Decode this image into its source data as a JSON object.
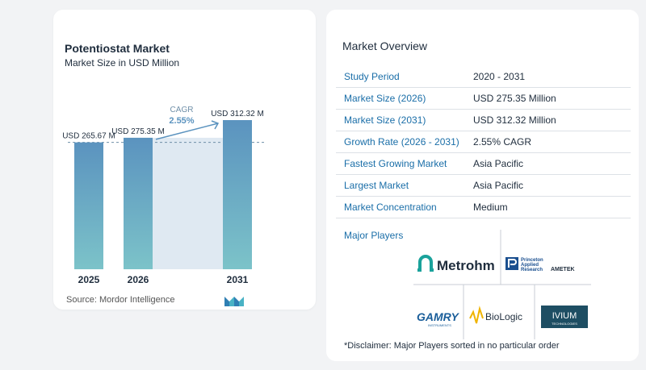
{
  "chart": {
    "title": "Potentiostat Market",
    "subtitle": "Market Size in USD Million",
    "source": "Source:  Mordor Intelligence",
    "cagr_label": "CAGR",
    "cagr_value": "2.55%"
  },
  "chart_data": {
    "type": "bar",
    "categories": [
      "2025",
      "2026",
      "2031"
    ],
    "values": [
      265.67,
      275.35,
      312.32
    ],
    "data_labels": [
      "USD 265.67 M",
      "USD 275.35 M",
      "USD 312.32 M"
    ],
    "title": "Potentiostat Market",
    "subtitle": "Market Size in USD Million",
    "xlabel": "",
    "ylabel": "",
    "colors": {
      "bar_top": "#5b93bf",
      "bar_bottom": "#7cc3c9",
      "highlight": "#dfe9f2",
      "arrow": "#5b93bf"
    }
  },
  "overview": {
    "title": "Market Overview",
    "rows": [
      {
        "label": "Study Period",
        "value": "2020 - 2031"
      },
      {
        "label": "Market Size (2026)",
        "value": "USD 275.35 Million"
      },
      {
        "label": "Market Size (2031)",
        "value": "USD 312.32 Million"
      },
      {
        "label": "Growth Rate (2026 - 2031)",
        "value": "2.55% CAGR"
      },
      {
        "label": "Fastest Growing Market",
        "value": "Asia Pacific"
      },
      {
        "label": "Largest Market",
        "value": "Asia Pacific"
      },
      {
        "label": "Market Concentration",
        "value": "Medium"
      }
    ],
    "players_label": "Major Players",
    "players": {
      "metrohm": "Metrohm",
      "princeton_1": "Princeton",
      "princeton_2": "Applied",
      "princeton_3": "Research",
      "ametek": "AMETEK",
      "gamry": "GAMRY",
      "gamry_sub": "INSTRUMENTS",
      "biologic": "BioLogic",
      "ivium": "IVIUM",
      "ivium_sub": "TECHNOLOGIES"
    },
    "disclaimer": "*Disclaimer: Major Players sorted in no particular order"
  }
}
